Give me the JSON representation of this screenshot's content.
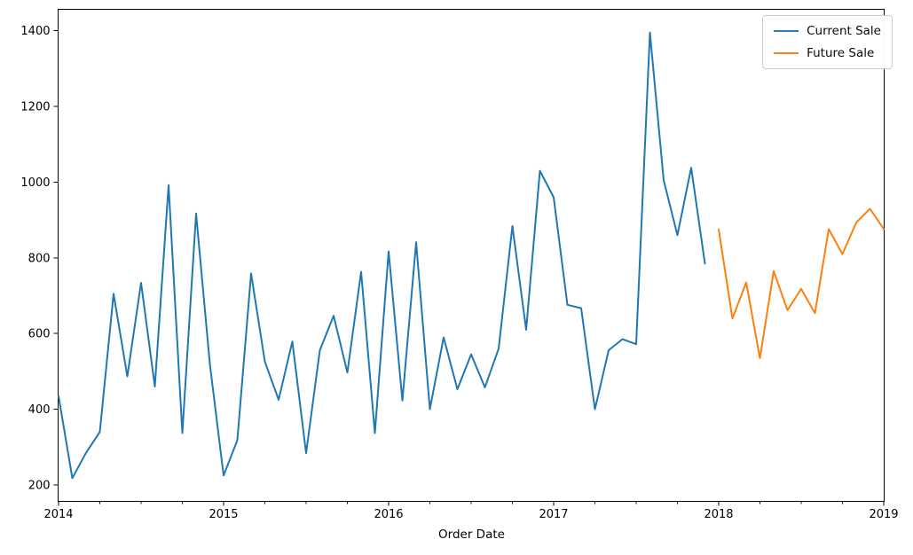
{
  "chart_data": {
    "type": "line",
    "title": "",
    "xlabel": "Order Date",
    "ylabel": "",
    "x_axis": {
      "unit": "month",
      "start": "2014-01",
      "end": "2019-01",
      "tick_labels": [
        "2014",
        "2015",
        "2016",
        "2017",
        "2018",
        "2019"
      ],
      "tick_month_positions": [
        0,
        12,
        24,
        36,
        48,
        60
      ],
      "minor_tick_interval_months": 3
    },
    "y_axis": {
      "tick_labels": [
        "200",
        "400",
        "600",
        "800",
        "1000",
        "1200",
        "1400"
      ],
      "tick_values": [
        200,
        400,
        600,
        800,
        1000,
        1200,
        1400
      ],
      "ylim": [
        158,
        1455
      ]
    },
    "grid": "off",
    "legend": {
      "position": "upper right",
      "entries": [
        "Current Sale",
        "Future Sale"
      ]
    },
    "series": [
      {
        "name": "Current Sale",
        "color": "#1f77b4",
        "start_month": 0,
        "months": "2014-01 .. 2017-12",
        "values": [
          435,
          218,
          285,
          340,
          705,
          487,
          734,
          460,
          992,
          337,
          917,
          520,
          225,
          318,
          759,
          526,
          425,
          579,
          284,
          556,
          647,
          497,
          763,
          337,
          817,
          423,
          841,
          400,
          590,
          453,
          545,
          458,
          560,
          884,
          610,
          1030,
          960,
          676,
          667,
          400,
          556,
          585,
          572,
          1395,
          1005,
          860,
          1038,
          785
        ]
      },
      {
        "name": "Future Sale",
        "color": "#ff7f0e",
        "start_month": 48,
        "months": "2018-01 .. 2019-01",
        "values": [
          875,
          640,
          735,
          535,
          765,
          662,
          718,
          654,
          876,
          810,
          893,
          930,
          876
        ]
      }
    ]
  }
}
